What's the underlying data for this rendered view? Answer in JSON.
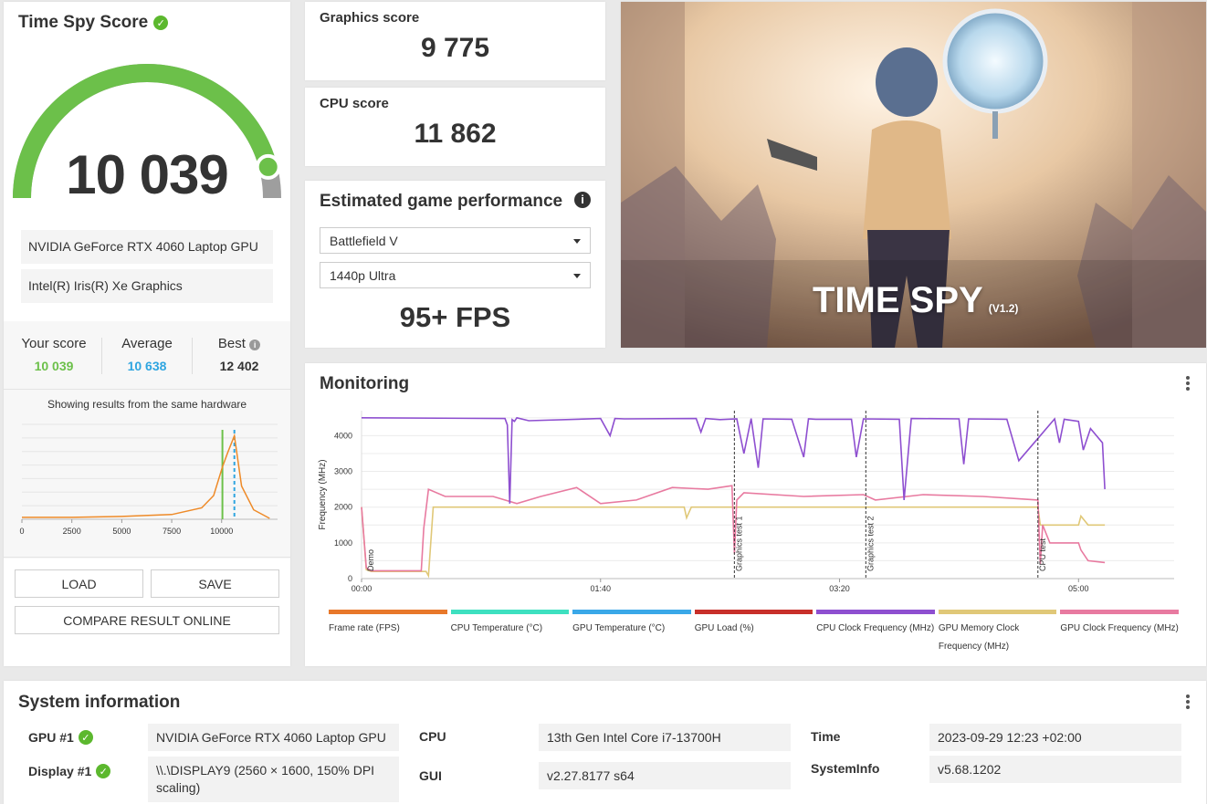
{
  "score_card": {
    "title": "Time Spy Score",
    "score": "10 039",
    "gauge_fraction": 0.92,
    "hardware": [
      "NVIDIA GeForce RTX 4060 Laptop GPU",
      "Intel(R) Iris(R) Xe Graphics"
    ],
    "your_score_label": "Your score",
    "your_score": "10 039",
    "average_label": "Average",
    "average": "10 638",
    "best_label": "Best",
    "best": "12 402",
    "same_hw_text": "Showing results from the same hardware",
    "load_label": "LOAD",
    "save_label": "SAVE",
    "compare_label": "COMPARE RESULT ONLINE",
    "colors": {
      "your": "#6cc04a",
      "average": "#2fa5e0",
      "gauge_fill": "#6cc04a",
      "gauge_rest": "#9e9e9e"
    }
  },
  "graphics": {
    "label": "Graphics score",
    "value": "9 775"
  },
  "cpu": {
    "label": "CPU score",
    "value": "11 862"
  },
  "estimate": {
    "title": "Estimated game performance",
    "game": "Battlefield V",
    "preset": "1440p Ultra",
    "fps": "95+ FPS"
  },
  "hero": {
    "title": "TIME SPY",
    "version": "(V1.2)"
  },
  "monitoring": {
    "title": "Monitoring",
    "ylabel": "Frequency (MHz)",
    "legend": [
      {
        "name": "Frame rate (FPS)",
        "color": "#e8782a"
      },
      {
        "name": "CPU Temperature (°C)",
        "color": "#3ee0c0"
      },
      {
        "name": "GPU Temperature (°C)",
        "color": "#3aa8e8"
      },
      {
        "name": "GPU Load (%)",
        "color": "#c8302a"
      },
      {
        "name": "CPU Clock Frequency (MHz)",
        "color": "#8e4fd0"
      },
      {
        "name": "GPU Memory Clock Frequency (MHz)",
        "color": "#e0c878"
      },
      {
        "name": "GPU Clock Frequency (MHz)",
        "color": "#e87aa0"
      }
    ],
    "markers": [
      "Demo",
      "Graphics test 1",
      "Graphics test 2",
      "CPU test"
    ]
  },
  "chart_data": [
    {
      "type": "line",
      "title": "",
      "xlabel": "",
      "ylabel": "",
      "x": [
        0,
        2500,
        5000,
        7500,
        9000,
        9600,
        10039,
        10300,
        10638,
        11000,
        11600,
        12402
      ],
      "series": [
        {
          "values": [
            0.02,
            0.02,
            0.03,
            0.05,
            0.12,
            0.25,
            0.55,
            0.7,
            0.88,
            0.35,
            0.1,
            0.01
          ]
        }
      ],
      "x_ticks": [
        "0",
        "2500",
        "5000",
        "7500",
        "10000"
      ],
      "xlim": [
        0,
        12800
      ],
      "grid": true,
      "markers": {
        "your_score": 10039,
        "average": 10638
      }
    },
    {
      "type": "line",
      "title": "",
      "ylabel": "Frequency (MHz)",
      "x_ticks": [
        "00:00",
        "01:40",
        "03:20",
        "05:00"
      ],
      "y_ticks": [
        "0",
        "1000",
        "2000",
        "3000",
        "4000"
      ],
      "xlim": [
        0,
        340
      ],
      "ylim": [
        0,
        4700
      ],
      "grid": true,
      "series": [
        {
          "name": "CPU Clock Frequency (MHz)",
          "x": [
            0,
            60,
            61,
            62,
            63,
            64,
            65,
            70,
            100,
            104,
            106,
            110,
            140,
            142,
            144,
            150,
            157,
            160,
            163,
            166,
            168,
            180,
            185,
            187,
            190,
            205,
            207,
            210,
            225,
            227,
            230,
            250,
            252,
            254,
            270,
            275,
            290,
            292,
            294,
            300,
            302,
            305,
            310,
            311
          ],
          "y": [
            4500,
            4480,
            4300,
            2100,
            4450,
            4400,
            4500,
            4420,
            4480,
            4000,
            4480,
            4470,
            4480,
            4100,
            4480,
            4450,
            4470,
            3500,
            4480,
            3100,
            4470,
            4460,
            3400,
            4470,
            4460,
            4460,
            3400,
            4470,
            4460,
            2200,
            4480,
            4470,
            3200,
            4470,
            4460,
            3300,
            4470,
            3800,
            4460,
            4400,
            3600,
            4200,
            3800,
            2500
          ]
        },
        {
          "name": "GPU Clock Frequency (MHz)",
          "x": [
            0,
            2,
            4,
            25,
            26,
            28,
            35,
            55,
            65,
            75,
            90,
            100,
            115,
            130,
            145,
            155,
            156,
            157,
            160,
            185,
            210,
            215,
            235,
            260,
            283,
            284,
            285,
            288,
            300,
            301,
            304,
            311
          ],
          "y": [
            2000,
            300,
            220,
            220,
            1400,
            2500,
            2300,
            2300,
            2100,
            2300,
            2550,
            2100,
            2200,
            2550,
            2500,
            2600,
            700,
            2200,
            2400,
            2300,
            2350,
            2200,
            2350,
            2300,
            2200,
            400,
            1500,
            1000,
            1000,
            800,
            500,
            450
          ]
        },
        {
          "name": "GPU Memory Clock Frequency (MHz)",
          "x": [
            0,
            2,
            4,
            27,
            28,
            30,
            135,
            136,
            138,
            140,
            155,
            283,
            284,
            286,
            300,
            301,
            304,
            311
          ],
          "y": [
            2000,
            250,
            200,
            200,
            80,
            2000,
            2000,
            1700,
            2000,
            2000,
            2000,
            2000,
            1500,
            1500,
            1500,
            1750,
            1500,
            1500
          ]
        }
      ],
      "vlines": [
        156,
        211,
        283
      ]
    }
  ],
  "system": {
    "title": "System information",
    "gpu_label": "GPU #1",
    "gpu": "NVIDIA GeForce RTX 4060 Laptop GPU",
    "display_label": "Display #1",
    "display": "\\\\.\\DISPLAY9 (2560 × 1600, 150% DPI scaling)",
    "cpu_label": "CPU",
    "cpu": "13th Gen Intel Core i7-13700H",
    "gui_label": "GUI",
    "gui": "v2.27.8177 s64",
    "time_label": "Time",
    "time": "2023-09-29 12:23 +02:00",
    "sysinfo_label": "SystemInfo",
    "sysinfo": "v5.68.1202"
  }
}
